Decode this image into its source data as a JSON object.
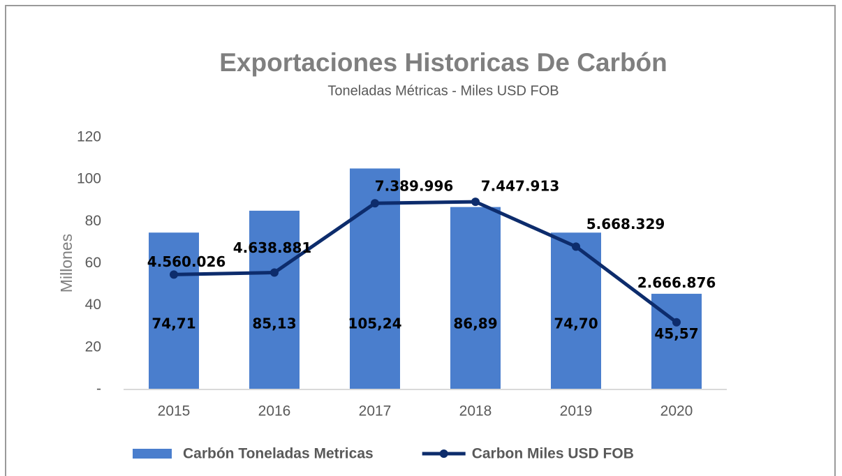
{
  "chart_data": {
    "type": "bar+line",
    "title": "Exportaciones Historicas De Carbón",
    "subtitle": "Toneladas Métricas - Miles USD FOB",
    "ylabel": "Millones",
    "categories": [
      "2015",
      "2016",
      "2017",
      "2018",
      "2019",
      "2020"
    ],
    "series": [
      {
        "name": "Carbón Toneladas Metricas",
        "type": "bar",
        "color": "#4a7ecd",
        "values": [
          74.71,
          85.13,
          105.24,
          86.89,
          74.7,
          45.57
        ],
        "value_labels": [
          "74,71",
          "85,13",
          "105,24",
          "86,89",
          "74,70",
          "45,57"
        ]
      },
      {
        "name": "Carbon Miles USD FOB",
        "type": "line",
        "axis": "y2",
        "color": "#0d2c6c",
        "values": [
          4560026,
          4638881,
          7389996,
          7447913,
          5668329,
          2666876
        ],
        "value_labels": [
          "4.560.026",
          "4.638.881",
          "7.389.996",
          "7.447.913",
          "5.668.329",
          "2.666.876"
        ]
      }
    ],
    "ylim": [
      0,
      120
    ],
    "yticks": [
      {
        "value": 0,
        "label": "-"
      },
      20,
      40,
      60,
      80,
      100,
      120
    ],
    "y2lim": [
      0,
      10000000
    ],
    "legend": "bottom",
    "grid": false
  }
}
